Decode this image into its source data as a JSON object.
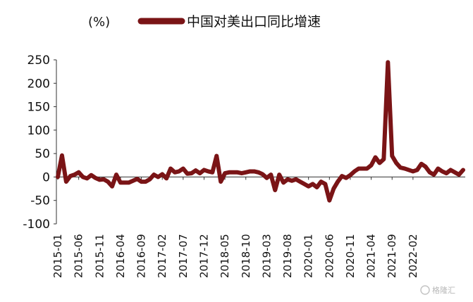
{
  "chart_data": {
    "type": "line",
    "title": "",
    "unit_label": "(%)",
    "xlabel": "",
    "ylabel": "",
    "ylim": [
      -100,
      250
    ],
    "y_ticks": [
      250,
      200,
      150,
      100,
      50,
      0,
      -50,
      -100
    ],
    "grid": false,
    "legend_position": "top",
    "start": "2015-01",
    "x_tick_labels": [
      "2015-01",
      "2015-06",
      "2015-11",
      "2016-04",
      "2016-09",
      "2017-02",
      "2017-07",
      "2017-12",
      "2018-05",
      "2018-10",
      "2019-03",
      "2019-08",
      "2020-01",
      "2020-06",
      "2020-11",
      "2021-04",
      "2021-09",
      "2022-02"
    ],
    "series": [
      {
        "name": "中国对美出口同比增速",
        "color": "#7a1416",
        "values": [
          0,
          46,
          -10,
          2,
          5,
          10,
          0,
          -3,
          4,
          -2,
          -6,
          -5,
          -10,
          -20,
          5,
          -12,
          -12,
          -12,
          -8,
          -4,
          -10,
          -10,
          -5,
          5,
          0,
          6,
          -3,
          18,
          10,
          12,
          18,
          7,
          8,
          14,
          8,
          15,
          12,
          10,
          45,
          -10,
          8,
          10,
          10,
          10,
          8,
          10,
          12,
          12,
          10,
          6,
          -2,
          5,
          -28,
          5,
          -12,
          -5,
          -8,
          -5,
          -10,
          -15,
          -20,
          -15,
          -22,
          -10,
          -15,
          -50,
          -25,
          -10,
          2,
          -2,
          4,
          12,
          18,
          18,
          18,
          25,
          42,
          30,
          38,
          245,
          45,
          30,
          20,
          18,
          15,
          12,
          15,
          28,
          22,
          10,
          5,
          18,
          12,
          8,
          15,
          10,
          5,
          15
        ]
      }
    ]
  },
  "watermark": "格隆汇"
}
